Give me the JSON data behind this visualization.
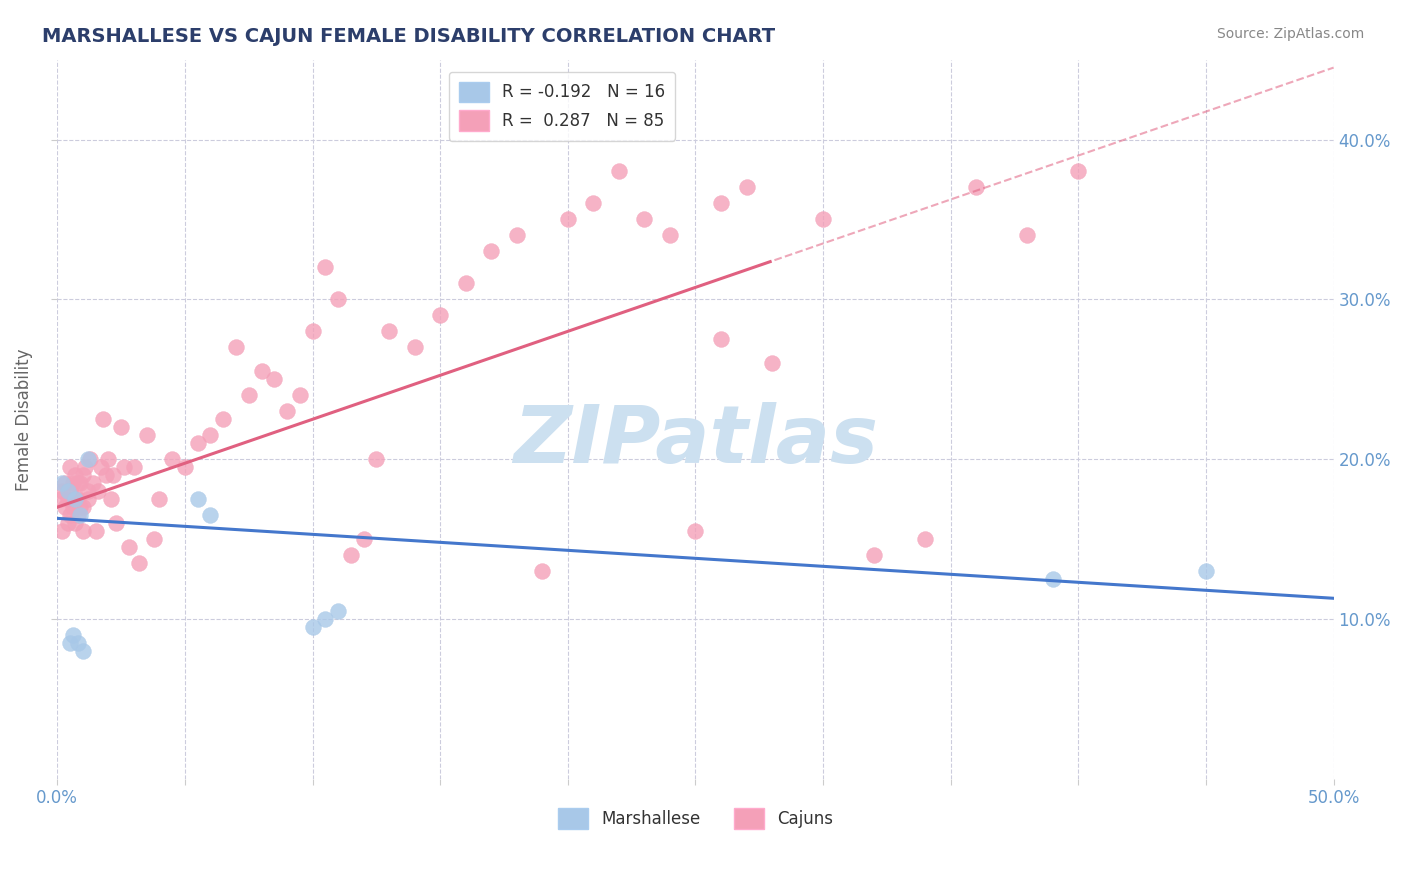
{
  "title": "MARSHALLESE VS CAJUN FEMALE DISABILITY CORRELATION CHART",
  "source": "Source: ZipAtlas.com",
  "ylabel": "Female Disability",
  "xlim": [
    0.0,
    0.5
  ],
  "ylim": [
    0.0,
    0.45
  ],
  "ytick_labels_right": [
    "10.0%",
    "20.0%",
    "30.0%",
    "40.0%"
  ],
  "ytick_positions_right": [
    0.1,
    0.2,
    0.3,
    0.4
  ],
  "xtick_labels": [
    "0.0%",
    "",
    "",
    "",
    "",
    "",
    "",
    "",
    "",
    "",
    "50.0%"
  ],
  "xtick_positions": [
    0.0,
    0.05,
    0.1,
    0.15,
    0.2,
    0.25,
    0.3,
    0.35,
    0.4,
    0.45,
    0.5
  ],
  "legend_blue_label": "R = -0.192   N = 16",
  "legend_pink_label": "R =  0.287   N = 85",
  "legend_bottom_blue": "Marshallese",
  "legend_bottom_pink": "Cajuns",
  "blue_color": "#a8c8e8",
  "pink_color": "#f4a0b8",
  "blue_line_color": "#4477cc",
  "pink_line_color": "#e06080",
  "watermark": "ZIPatlas",
  "marshallese_x": [
    0.002,
    0.004,
    0.005,
    0.006,
    0.007,
    0.008,
    0.009,
    0.01,
    0.012,
    0.055,
    0.06,
    0.1,
    0.105,
    0.11,
    0.39,
    0.45
  ],
  "marshallese_y": [
    0.185,
    0.18,
    0.085,
    0.09,
    0.175,
    0.085,
    0.165,
    0.08,
    0.2,
    0.175,
    0.165,
    0.095,
    0.1,
    0.105,
    0.125,
    0.13
  ],
  "cajun_x": [
    0.001,
    0.002,
    0.002,
    0.003,
    0.003,
    0.004,
    0.004,
    0.005,
    0.005,
    0.005,
    0.006,
    0.006,
    0.007,
    0.007,
    0.007,
    0.008,
    0.008,
    0.008,
    0.009,
    0.009,
    0.01,
    0.01,
    0.01,
    0.011,
    0.012,
    0.012,
    0.013,
    0.014,
    0.015,
    0.016,
    0.017,
    0.018,
    0.019,
    0.02,
    0.021,
    0.022,
    0.023,
    0.025,
    0.026,
    0.028,
    0.03,
    0.032,
    0.035,
    0.038,
    0.04,
    0.045,
    0.05,
    0.055,
    0.06,
    0.065,
    0.07,
    0.075,
    0.08,
    0.085,
    0.09,
    0.095,
    0.1,
    0.105,
    0.11,
    0.115,
    0.12,
    0.125,
    0.13,
    0.14,
    0.15,
    0.16,
    0.17,
    0.18,
    0.19,
    0.2,
    0.21,
    0.22,
    0.23,
    0.24,
    0.25,
    0.26,
    0.27,
    0.28,
    0.3,
    0.32,
    0.34,
    0.36,
    0.38,
    0.4,
    0.26
  ],
  "cajun_y": [
    0.175,
    0.18,
    0.155,
    0.17,
    0.185,
    0.16,
    0.175,
    0.165,
    0.18,
    0.195,
    0.17,
    0.185,
    0.175,
    0.19,
    0.16,
    0.175,
    0.165,
    0.185,
    0.17,
    0.185,
    0.155,
    0.17,
    0.19,
    0.195,
    0.18,
    0.175,
    0.2,
    0.185,
    0.155,
    0.18,
    0.195,
    0.225,
    0.19,
    0.2,
    0.175,
    0.19,
    0.16,
    0.22,
    0.195,
    0.145,
    0.195,
    0.135,
    0.215,
    0.15,
    0.175,
    0.2,
    0.195,
    0.21,
    0.215,
    0.225,
    0.27,
    0.24,
    0.255,
    0.25,
    0.23,
    0.24,
    0.28,
    0.32,
    0.3,
    0.14,
    0.15,
    0.2,
    0.28,
    0.27,
    0.29,
    0.31,
    0.33,
    0.34,
    0.13,
    0.35,
    0.36,
    0.38,
    0.35,
    0.34,
    0.155,
    0.36,
    0.37,
    0.26,
    0.35,
    0.14,
    0.15,
    0.37,
    0.34,
    0.38,
    0.275
  ],
  "title_color": "#2c3e6b",
  "source_color": "#888888",
  "axis_label_color": "#666666",
  "tick_label_color": "#6699cc",
  "grid_color": "#ccccdd",
  "watermark_color": "#cce0f0",
  "pink_trend_intercept": 0.17,
  "pink_trend_slope": 0.55,
  "blue_trend_intercept": 0.163,
  "blue_trend_slope": -0.1
}
